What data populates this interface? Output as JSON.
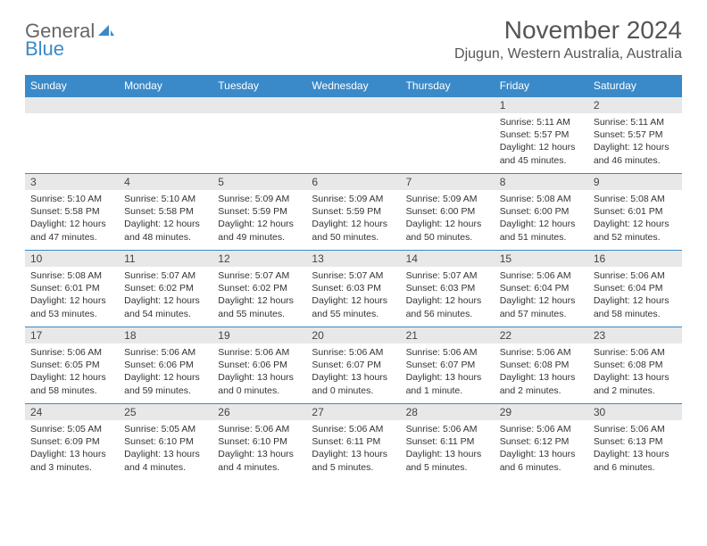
{
  "logo": {
    "part1": "General",
    "part2": "Blue"
  },
  "title": "November 2024",
  "subtitle": "Djugun, Western Australia, Australia",
  "colors": {
    "header_bg": "#3a8ac9",
    "header_text": "#ffffff",
    "daynum_bg": "#e8e8e8",
    "border": "#3a8ac9",
    "text": "#333333",
    "title_text": "#555555"
  },
  "weekdays": [
    "Sunday",
    "Monday",
    "Tuesday",
    "Wednesday",
    "Thursday",
    "Friday",
    "Saturday"
  ],
  "weeks": [
    [
      {
        "n": "",
        "t": ""
      },
      {
        "n": "",
        "t": ""
      },
      {
        "n": "",
        "t": ""
      },
      {
        "n": "",
        "t": ""
      },
      {
        "n": "",
        "t": ""
      },
      {
        "n": "1",
        "t": "Sunrise: 5:11 AM\nSunset: 5:57 PM\nDaylight: 12 hours and 45 minutes."
      },
      {
        "n": "2",
        "t": "Sunrise: 5:11 AM\nSunset: 5:57 PM\nDaylight: 12 hours and 46 minutes."
      }
    ],
    [
      {
        "n": "3",
        "t": "Sunrise: 5:10 AM\nSunset: 5:58 PM\nDaylight: 12 hours and 47 minutes."
      },
      {
        "n": "4",
        "t": "Sunrise: 5:10 AM\nSunset: 5:58 PM\nDaylight: 12 hours and 48 minutes."
      },
      {
        "n": "5",
        "t": "Sunrise: 5:09 AM\nSunset: 5:59 PM\nDaylight: 12 hours and 49 minutes."
      },
      {
        "n": "6",
        "t": "Sunrise: 5:09 AM\nSunset: 5:59 PM\nDaylight: 12 hours and 50 minutes."
      },
      {
        "n": "7",
        "t": "Sunrise: 5:09 AM\nSunset: 6:00 PM\nDaylight: 12 hours and 50 minutes."
      },
      {
        "n": "8",
        "t": "Sunrise: 5:08 AM\nSunset: 6:00 PM\nDaylight: 12 hours and 51 minutes."
      },
      {
        "n": "9",
        "t": "Sunrise: 5:08 AM\nSunset: 6:01 PM\nDaylight: 12 hours and 52 minutes."
      }
    ],
    [
      {
        "n": "10",
        "t": "Sunrise: 5:08 AM\nSunset: 6:01 PM\nDaylight: 12 hours and 53 minutes."
      },
      {
        "n": "11",
        "t": "Sunrise: 5:07 AM\nSunset: 6:02 PM\nDaylight: 12 hours and 54 minutes."
      },
      {
        "n": "12",
        "t": "Sunrise: 5:07 AM\nSunset: 6:02 PM\nDaylight: 12 hours and 55 minutes."
      },
      {
        "n": "13",
        "t": "Sunrise: 5:07 AM\nSunset: 6:03 PM\nDaylight: 12 hours and 55 minutes."
      },
      {
        "n": "14",
        "t": "Sunrise: 5:07 AM\nSunset: 6:03 PM\nDaylight: 12 hours and 56 minutes."
      },
      {
        "n": "15",
        "t": "Sunrise: 5:06 AM\nSunset: 6:04 PM\nDaylight: 12 hours and 57 minutes."
      },
      {
        "n": "16",
        "t": "Sunrise: 5:06 AM\nSunset: 6:04 PM\nDaylight: 12 hours and 58 minutes."
      }
    ],
    [
      {
        "n": "17",
        "t": "Sunrise: 5:06 AM\nSunset: 6:05 PM\nDaylight: 12 hours and 58 minutes."
      },
      {
        "n": "18",
        "t": "Sunrise: 5:06 AM\nSunset: 6:06 PM\nDaylight: 12 hours and 59 minutes."
      },
      {
        "n": "19",
        "t": "Sunrise: 5:06 AM\nSunset: 6:06 PM\nDaylight: 13 hours and 0 minutes."
      },
      {
        "n": "20",
        "t": "Sunrise: 5:06 AM\nSunset: 6:07 PM\nDaylight: 13 hours and 0 minutes."
      },
      {
        "n": "21",
        "t": "Sunrise: 5:06 AM\nSunset: 6:07 PM\nDaylight: 13 hours and 1 minute."
      },
      {
        "n": "22",
        "t": "Sunrise: 5:06 AM\nSunset: 6:08 PM\nDaylight: 13 hours and 2 minutes."
      },
      {
        "n": "23",
        "t": "Sunrise: 5:06 AM\nSunset: 6:08 PM\nDaylight: 13 hours and 2 minutes."
      }
    ],
    [
      {
        "n": "24",
        "t": "Sunrise: 5:05 AM\nSunset: 6:09 PM\nDaylight: 13 hours and 3 minutes."
      },
      {
        "n": "25",
        "t": "Sunrise: 5:05 AM\nSunset: 6:10 PM\nDaylight: 13 hours and 4 minutes."
      },
      {
        "n": "26",
        "t": "Sunrise: 5:06 AM\nSunset: 6:10 PM\nDaylight: 13 hours and 4 minutes."
      },
      {
        "n": "27",
        "t": "Sunrise: 5:06 AM\nSunset: 6:11 PM\nDaylight: 13 hours and 5 minutes."
      },
      {
        "n": "28",
        "t": "Sunrise: 5:06 AM\nSunset: 6:11 PM\nDaylight: 13 hours and 5 minutes."
      },
      {
        "n": "29",
        "t": "Sunrise: 5:06 AM\nSunset: 6:12 PM\nDaylight: 13 hours and 6 minutes."
      },
      {
        "n": "30",
        "t": "Sunrise: 5:06 AM\nSunset: 6:13 PM\nDaylight: 13 hours and 6 minutes."
      }
    ]
  ]
}
